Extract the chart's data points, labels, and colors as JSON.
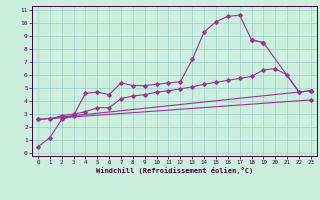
{
  "xlabel": "Windchill (Refroidissement éolien,°C)",
  "bg_color": "#cceedd",
  "line_color": "#993399",
  "grid_color": "#99cccc",
  "xlim": [
    -0.5,
    23.5
  ],
  "ylim": [
    -0.2,
    11.3
  ],
  "xticks": [
    0,
    1,
    2,
    3,
    4,
    5,
    6,
    7,
    8,
    9,
    10,
    11,
    12,
    13,
    14,
    15,
    16,
    17,
    18,
    19,
    20,
    21,
    22,
    23
  ],
  "yticks": [
    0,
    1,
    2,
    3,
    4,
    5,
    6,
    7,
    8,
    9,
    10,
    11
  ],
  "curve1_x": [
    0,
    1,
    2,
    3,
    4,
    5,
    6,
    7,
    8,
    9,
    10,
    11,
    12,
    13,
    14,
    15,
    16,
    17,
    18,
    19
  ],
  "curve1_y": [
    0.5,
    1.2,
    2.6,
    2.9,
    4.6,
    4.7,
    4.5,
    5.4,
    5.2,
    5.2,
    5.3,
    5.4,
    5.5,
    7.2,
    9.3,
    10.1,
    10.5,
    10.6,
    8.7,
    8.5
  ],
  "curve2_x": [
    18,
    19,
    22,
    23
  ],
  "curve2_y": [
    8.7,
    8.5,
    4.7,
    4.8
  ],
  "curve3_x": [
    1,
    2,
    3,
    4,
    5,
    6,
    7,
    8,
    9,
    10,
    11,
    12,
    13,
    14,
    15,
    16,
    17,
    18,
    19,
    20,
    21,
    22,
    23
  ],
  "curve3_y": [
    2.6,
    2.9,
    3.0,
    3.2,
    3.5,
    3.5,
    4.2,
    4.4,
    4.5,
    4.7,
    4.8,
    4.95,
    5.1,
    5.3,
    5.45,
    5.6,
    5.75,
    5.9,
    6.4,
    6.5,
    6.0,
    4.7,
    4.8
  ],
  "line1_x": [
    0,
    23
  ],
  "line1_y": [
    2.6,
    4.8
  ],
  "line2_x": [
    0,
    23
  ],
  "line2_y": [
    2.6,
    4.1
  ]
}
